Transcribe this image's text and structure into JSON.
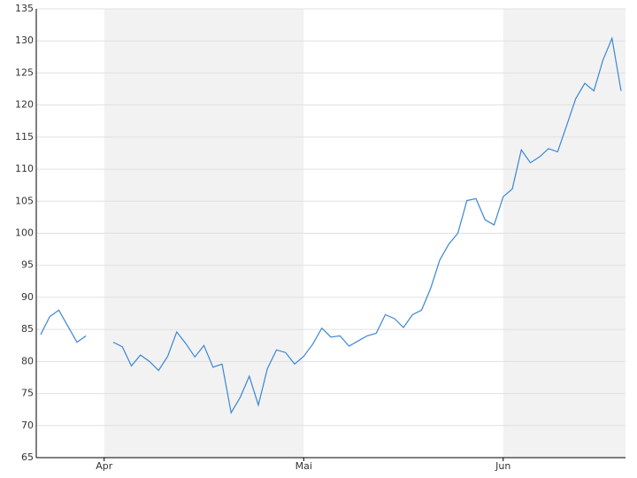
{
  "chart_data": {
    "type": "line",
    "categories": [
      null,
      null,
      null,
      null,
      null,
      null,
      null,
      "Apr",
      null,
      null,
      null,
      null,
      null,
      null,
      null,
      null,
      null,
      null,
      null,
      null,
      null,
      null,
      null,
      null,
      null,
      null,
      null,
      null,
      null,
      "Mai",
      null,
      null,
      null,
      null,
      null,
      null,
      null,
      null,
      null,
      null,
      null,
      null,
      null,
      null,
      null,
      null,
      null,
      null,
      null,
      null,
      null,
      "Jun",
      null,
      null,
      null,
      null,
      null,
      null,
      null,
      null,
      null,
      null,
      null,
      null,
      null
    ],
    "series": [
      {
        "color": "#3a87d6",
        "values": [
          84.2,
          87,
          88,
          85.5,
          83,
          84,
          null,
          null,
          83,
          82.3,
          79.3,
          81,
          80,
          78.6,
          80.8,
          84.6,
          82.8,
          80.7,
          82.5,
          79.1,
          79.6,
          72,
          74.4,
          77.7,
          73.2,
          78.9,
          81.8,
          81.4,
          79.6,
          80.8,
          82.7,
          85.2,
          83.8,
          84,
          82.4,
          83.2,
          84,
          84.4,
          87.3,
          86.7,
          85.3,
          87.3,
          88,
          91.4,
          95.8,
          98.3,
          100,
          105.1,
          105.4,
          102.1,
          101.3,
          105.7,
          106.9,
          113,
          111,
          111.9,
          113.2,
          112.7,
          116.8,
          121,
          123.4,
          122.2,
          127,
          130.4,
          122.2
        ]
      }
    ],
    "ylim": [
      65,
      135
    ],
    "yticks": [
      65,
      70,
      75,
      80,
      85,
      90,
      95,
      100,
      105,
      110,
      115,
      120,
      125,
      130,
      135
    ],
    "grid": true
  }
}
